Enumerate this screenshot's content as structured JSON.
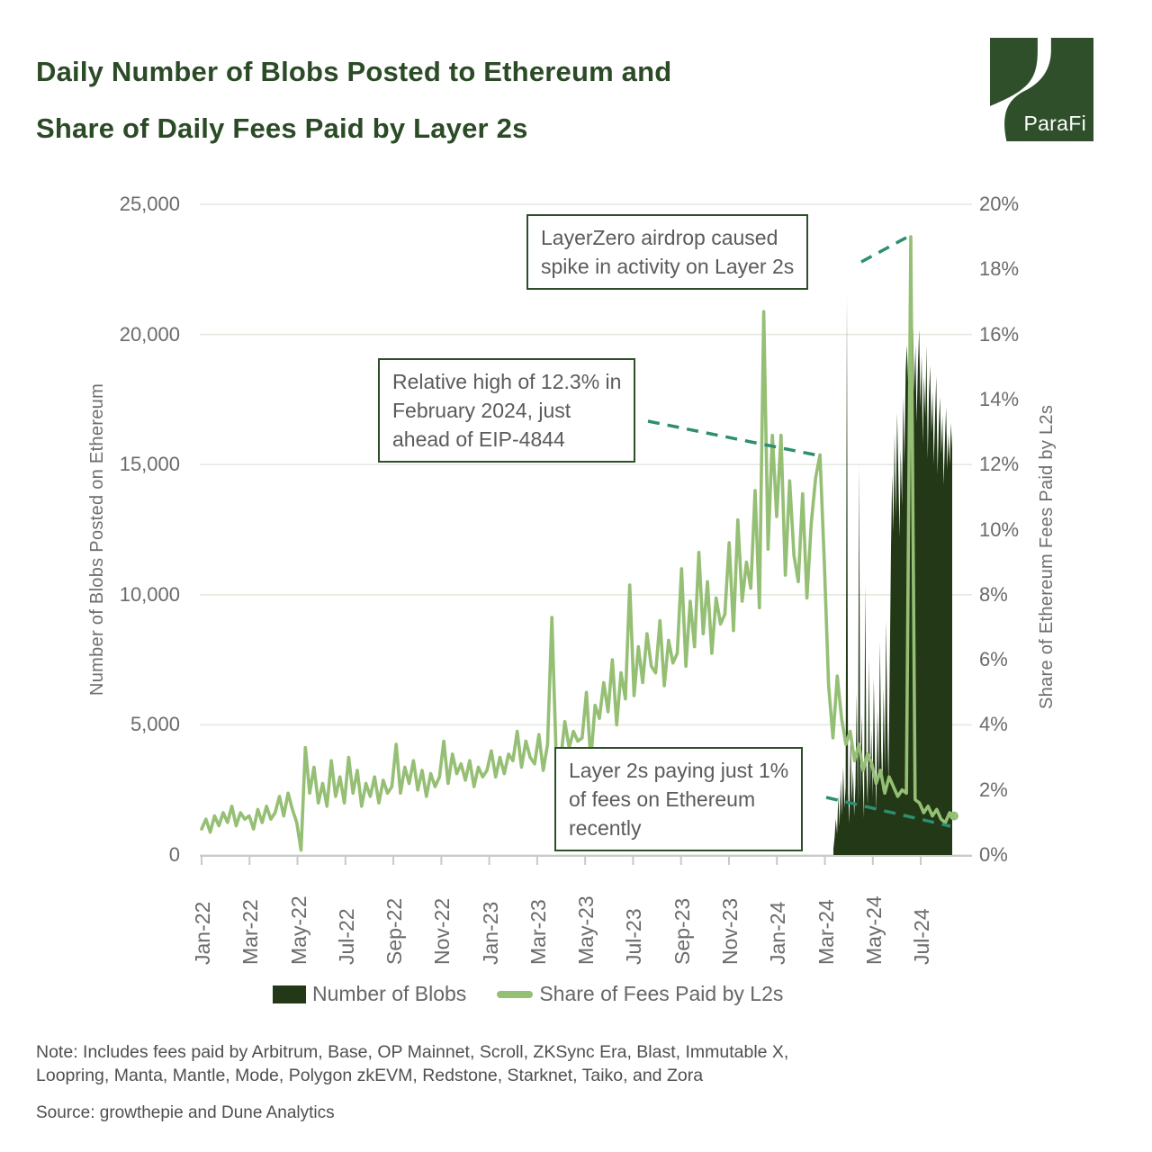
{
  "title": {
    "line1": "Daily Number of Blobs Posted to Ethereum and",
    "line2": "Share of Daily Fees Paid by Layer 2s"
  },
  "logo": {
    "text": "ParaFi",
    "color": "#2e4f2a"
  },
  "colors": {
    "title_green": "#2b4a26",
    "blobs_dark_green": "#223816",
    "fees_light_green": "#95bf74",
    "dash_teal": "#2d8e71",
    "grid": "#e3e9df",
    "axis_gray": "#c9c9c9",
    "tick_text": "#6b6b6b"
  },
  "chart_data": {
    "type": "mixed",
    "title": "Daily Number of Blobs Posted to Ethereum and Share of Daily Fees Paid by Layer 2s",
    "x_axis": {
      "ticks": [
        "Jan-22",
        "Mar-22",
        "May-22",
        "Jul-22",
        "Sep-22",
        "Nov-22",
        "Jan-23",
        "Mar-23",
        "May-23",
        "Jul-23",
        "Sep-23",
        "Nov-23",
        "Jan-24",
        "Mar-24",
        "May-24",
        "Jul-24"
      ],
      "range_start": "Jan-2022",
      "range_end": "Aug-2024",
      "grid": false
    },
    "left_axis": {
      "label": "Number of Blobs Posted on Ethereum",
      "ticks": [
        "25,000",
        "20,000",
        "15,000",
        "10,000",
        "5,000",
        "0"
      ],
      "min": 0,
      "max": 25000,
      "grid": true
    },
    "right_axis": {
      "label": "Share of Ethereum Fees Paid by L2s",
      "ticks": [
        "20%",
        "18%",
        "16%",
        "14%",
        "12%",
        "10%",
        "8%",
        "6%",
        "4%",
        "2%",
        "0%"
      ],
      "min": 0,
      "max": 20
    },
    "series": [
      {
        "name": "Number of Blobs",
        "type": "area",
        "axis": "left",
        "color": "#223816",
        "start": "Mar-2024 (EIP-4844)",
        "end": "Aug-2024",
        "values": [
          250,
          700,
          1400,
          800,
          2300,
          1100,
          2900,
          1500,
          3400,
          1800,
          2600,
          21500,
          2400,
          1200,
          4800,
          2000,
          3300,
          1500,
          2700,
          6200,
          1800,
          15000,
          2100,
          5400,
          2800,
          1400,
          10400,
          3200,
          1900,
          7600,
          2500,
          4800,
          2200,
          6800,
          3600,
          1700,
          5600,
          2900,
          8200,
          4100,
          2400,
          6400,
          3300,
          9000,
          5100,
          2800,
          7200,
          11800,
          14600,
          12400,
          16200,
          13000,
          17000,
          14800,
          12200,
          15600,
          13400,
          17600,
          15000,
          18600,
          19600,
          18200,
          20300,
          20800,
          19000,
          20300,
          17800,
          19600,
          16600,
          18800,
          20200,
          17200,
          19200,
          15800,
          18400,
          16800,
          19600,
          15200,
          17600,
          18800,
          16200,
          17800,
          15000,
          16800,
          18400,
          14600,
          16400,
          17600,
          15400,
          16900,
          14200,
          15800,
          17200,
          14800,
          16200,
          15000,
          16600,
          15600
        ]
      },
      {
        "name": "Share of Fees Paid by L2s",
        "type": "line",
        "axis": "right",
        "color": "#95bf74",
        "start": "Jan-2022",
        "end": "Aug-2024",
        "values_pct": [
          0.8,
          1.1,
          0.7,
          1.2,
          0.9,
          1.3,
          1.0,
          1.5,
          0.9,
          1.3,
          1.1,
          1.2,
          0.8,
          1.4,
          1.0,
          1.5,
          1.1,
          1.3,
          1.8,
          1.2,
          1.9,
          1.4,
          1.0,
          0.15,
          3.3,
          1.9,
          2.7,
          1.6,
          2.2,
          1.5,
          2.9,
          1.8,
          2.4,
          1.6,
          3.0,
          1.9,
          2.6,
          1.5,
          2.2,
          1.8,
          2.4,
          1.6,
          2.3,
          1.9,
          2.1,
          3.4,
          1.9,
          2.7,
          2.2,
          2.9,
          2.0,
          2.6,
          1.8,
          2.5,
          2.1,
          2.4,
          3.5,
          2.2,
          3.1,
          2.5,
          2.8,
          2.3,
          2.9,
          2.1,
          2.7,
          2.4,
          2.6,
          3.2,
          2.4,
          3.0,
          2.5,
          3.1,
          2.9,
          3.8,
          2.7,
          3.5,
          3.0,
          2.8,
          3.7,
          2.6,
          3.4,
          7.3,
          3.0,
          2.9,
          4.1,
          3.3,
          3.8,
          3.5,
          3.6,
          5.0,
          2.9,
          4.6,
          4.2,
          5.3,
          4.4,
          6.0,
          4.0,
          5.6,
          4.8,
          8.3,
          4.9,
          6.4,
          5.3,
          6.8,
          5.8,
          5.6,
          7.2,
          5.2,
          6.6,
          5.9,
          6.2,
          8.8,
          5.8,
          7.8,
          6.4,
          9.3,
          6.8,
          8.4,
          6.2,
          7.9,
          7.1,
          7.4,
          9.6,
          6.9,
          10.3,
          7.8,
          9.0,
          8.2,
          11.2,
          7.6,
          16.7,
          9.4,
          12.9,
          10.4,
          12.9,
          8.6,
          11.5,
          9.2,
          8.4,
          11.1,
          7.9,
          10.2,
          11.6,
          12.3,
          9.0,
          5.2,
          3.6,
          5.5,
          4.2,
          3.4,
          3.8,
          2.9,
          3.4,
          2.6,
          3.1,
          2.8,
          2.2,
          2.6,
          1.9,
          2.4,
          2.1,
          1.8,
          2.0,
          1.9,
          19.0,
          1.7,
          1.6,
          1.3,
          1.5,
          1.2,
          1.4,
          1.1,
          1.0,
          1.3,
          1.2
        ]
      }
    ],
    "annotations": [
      {
        "id": "layerzero",
        "line1": "LayerZero airdrop caused",
        "line2": "spike in activity on Layer 2s",
        "line3": ""
      },
      {
        "id": "relative-high",
        "line1": "Relative high of 12.3% in",
        "line2": "February 2024, just",
        "line3": "ahead of EIP-4844"
      },
      {
        "id": "one-percent",
        "line1": "Layer 2s paying just 1%",
        "line2": "of fees on Ethereum",
        "line3": "recently"
      }
    ]
  },
  "legend": {
    "items": [
      {
        "label": "Number of Blobs",
        "swatch": "area",
        "color": "#223816"
      },
      {
        "label": "Share of Fees Paid by L2s",
        "swatch": "line",
        "color": "#95bf74"
      }
    ]
  },
  "note": {
    "line1": "Note: Includes fees paid by Arbitrum, Base, OP Mainnet, Scroll, ZKSync Era, Blast, Immutable X,",
    "line2": "Loopring, Manta, Mantle, Mode, Polygon zkEVM, Redstone, Starknet, Taiko, and Zora"
  },
  "source": "Source: growthepie and Dune Analytics"
}
